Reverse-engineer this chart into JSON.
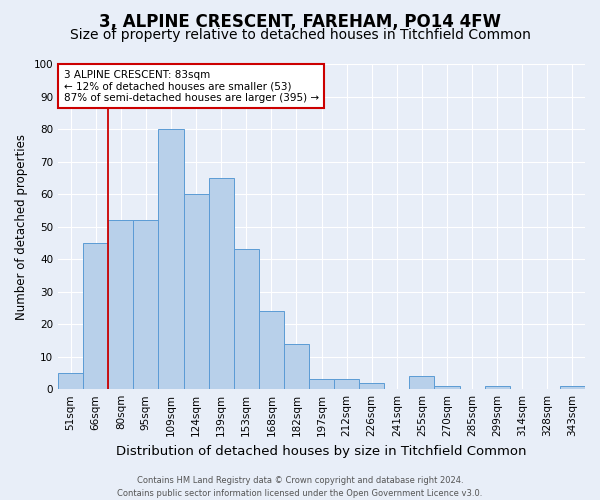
{
  "title": "3, ALPINE CRESCENT, FAREHAM, PO14 4FW",
  "subtitle": "Size of property relative to detached houses in Titchfield Common",
  "xlabel": "Distribution of detached houses by size in Titchfield Common",
  "ylabel": "Number of detached properties",
  "categories": [
    "51sqm",
    "66sqm",
    "80sqm",
    "95sqm",
    "109sqm",
    "124sqm",
    "139sqm",
    "153sqm",
    "168sqm",
    "182sqm",
    "197sqm",
    "212sqm",
    "226sqm",
    "241sqm",
    "255sqm",
    "270sqm",
    "285sqm",
    "299sqm",
    "314sqm",
    "328sqm",
    "343sqm"
  ],
  "values": [
    5,
    45,
    52,
    52,
    80,
    60,
    65,
    43,
    24,
    14,
    3,
    3,
    2,
    0,
    4,
    1,
    0,
    1,
    0,
    0,
    1
  ],
  "bar_color": "#b8d0ea",
  "bar_edge_color": "#5b9bd5",
  "background_color": "#e8eef8",
  "grid_color": "#ffffff",
  "annotation_text": "3 ALPINE CRESCENT: 83sqm\n← 12% of detached houses are smaller (53)\n87% of semi-detached houses are larger (395) →",
  "annotation_box_color": "#ffffff",
  "annotation_box_edge_color": "#cc0000",
  "redline_x": 1.5,
  "ylim": [
    0,
    100
  ],
  "yticks": [
    0,
    10,
    20,
    30,
    40,
    50,
    60,
    70,
    80,
    90,
    100
  ],
  "footnote": "Contains HM Land Registry data © Crown copyright and database right 2024.\nContains public sector information licensed under the Open Government Licence v3.0.",
  "title_fontsize": 12,
  "subtitle_fontsize": 10,
  "xlabel_fontsize": 9.5,
  "ylabel_fontsize": 8.5,
  "tick_fontsize": 7.5,
  "annot_fontsize": 7.5,
  "footnote_fontsize": 6
}
